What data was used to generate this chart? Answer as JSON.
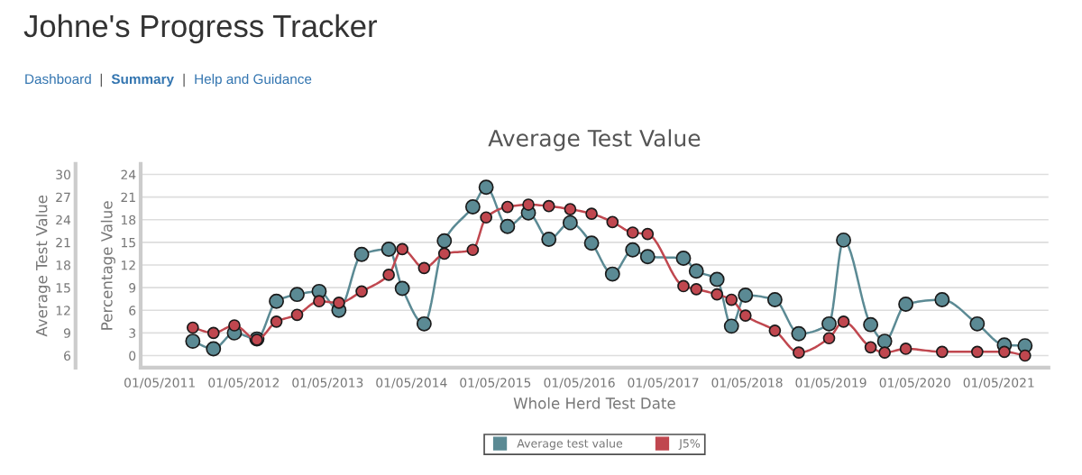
{
  "chart_data": {
    "type": "line",
    "title": "Average Test Value",
    "xlabel": "Whole Herd Test Date",
    "ylabel": "Average Test Value",
    "y2label": "Percentage Value",
    "annotations": [
      "Johne's Progress Tracker",
      "Dashboard",
      "|",
      "Summary",
      "|",
      "Help and Guidance"
    ],
    "x": [
      "2011-09-22",
      "2011-12-21",
      "2012-03-21",
      "2012-06-27",
      "2012-09-20",
      "2012-12-19",
      "2013-03-25",
      "2013-06-19",
      "2013-09-26",
      "2014-01-22",
      "2014-03-22",
      "2014-06-25",
      "2014-09-21",
      "2015-01-23",
      "2015-03-22",
      "2015-06-23",
      "2015-09-22",
      "2015-12-20",
      "2016-03-22",
      "2016-06-23",
      "2016-09-22",
      "2016-12-19",
      "2017-02-22",
      "2017-07-28",
      "2017-09-22",
      "2017-12-21",
      "2018-02-22",
      "2018-04-24",
      "2018-08-30",
      "2018-12-12",
      "2019-04-23",
      "2019-06-25",
      "2019-10-21",
      "2019-12-21",
      "2020-03-22",
      "2020-08-27",
      "2021-01-27",
      "2021-05-25",
      "2021-08-23"
    ],
    "series": [
      {
        "name": "Average test value",
        "color": "#5b8a94",
        "values": [
          7.9,
          6.9,
          9.0,
          8.2,
          13.2,
          14.1,
          14.5,
          12.0,
          19.4,
          20.1,
          14.9,
          10.2,
          21.2,
          25.7,
          28.3,
          23.1,
          24.9,
          21.4,
          23.6,
          20.9,
          16.8,
          20.0,
          19.1,
          18.9,
          17.2,
          16.1,
          9.9,
          14.0,
          13.4,
          8.9,
          10.2,
          21.3,
          10.1,
          7.9,
          12.8,
          13.4,
          10.2,
          7.4,
          7.3
        ]
      },
      {
        "name": "J5%",
        "color": "#c0474f",
        "axis": "y2",
        "values": [
          3.7,
          3.0,
          4.0,
          2.1,
          4.5,
          5.4,
          7.2,
          7.0,
          8.5,
          10.7,
          14.1,
          11.6,
          13.5,
          14.0,
          18.3,
          19.7,
          20.0,
          19.8,
          19.4,
          18.8,
          17.7,
          16.3,
          16.1,
          9.2,
          8.8,
          8.1,
          7.4,
          5.3,
          3.3,
          0.4,
          2.3,
          4.5,
          1.1,
          0.4,
          0.9,
          0.5,
          0.5,
          0.5,
          0.0
        ]
      }
    ],
    "xlim": [
      "2011-02-07",
      "2021-12-03"
    ],
    "xticks": [
      {
        "value": "2011-05-01",
        "label": "01/05/2011"
      },
      {
        "value": "2012-05-01",
        "label": "01/05/2012"
      },
      {
        "value": "2013-05-01",
        "label": "01/05/2013"
      },
      {
        "value": "2014-05-01",
        "label": "01/05/2014"
      },
      {
        "value": "2015-05-01",
        "label": "01/05/2015"
      },
      {
        "value": "2016-05-01",
        "label": "01/05/2016"
      },
      {
        "value": "2017-05-01",
        "label": "01/05/2017"
      },
      {
        "value": "2018-05-01",
        "label": "01/05/2018"
      },
      {
        "value": "2019-05-01",
        "label": "01/05/2019"
      },
      {
        "value": "2020-05-01",
        "label": "01/05/2020"
      },
      {
        "value": "2021-05-01",
        "label": "01/05/2021"
      }
    ],
    "ylim": [
      4.4,
      31.4
    ],
    "yticks": [
      6,
      9,
      12,
      15,
      18,
      21,
      24,
      27,
      30
    ],
    "y2lim": [
      -1.6,
      25.4
    ],
    "y2ticks": [
      0,
      3,
      6,
      9,
      12,
      15,
      18,
      21,
      24
    ],
    "grid": "y",
    "legend": "bottom",
    "marker": "circle",
    "line_style": "solid"
  }
}
